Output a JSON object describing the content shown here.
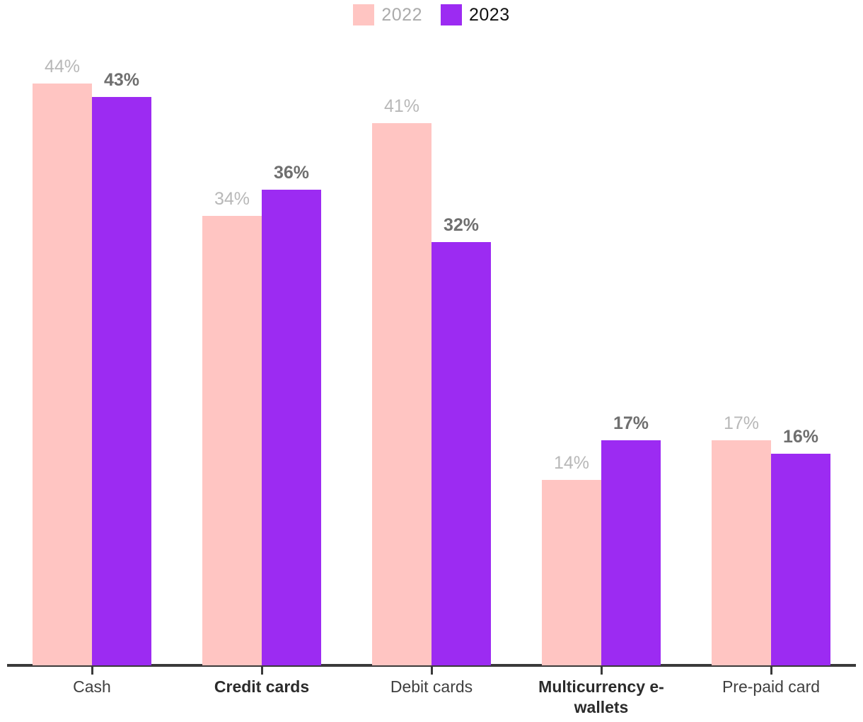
{
  "chart_data": {
    "type": "bar",
    "title": "",
    "xlabel": "",
    "ylabel": "",
    "value_suffix": "%",
    "ylim": [
      0,
      50
    ],
    "grid": false,
    "legend_position": "top-center",
    "categories": [
      "Cash",
      "Credit cards",
      "Debit cards",
      "Multicurrency e-wallets",
      "Pre-paid card"
    ],
    "category_bold": [
      false,
      true,
      false,
      true,
      false
    ],
    "series": [
      {
        "name": "2022",
        "color": "#FFC5C2",
        "values": [
          44,
          34,
          41,
          14,
          17
        ],
        "value_labels": [
          "44%",
          "34%",
          "41%",
          "14%",
          "17%"
        ],
        "value_label_color": "#B8B8B8",
        "value_label_bold": false,
        "legend_text_color": "#ABABAB",
        "legend_text_bold": false
      },
      {
        "name": "2023",
        "color": "#9C2BF2",
        "values": [
          43,
          36,
          32,
          17,
          16
        ],
        "value_labels": [
          "43%",
          "36%",
          "32%",
          "17%",
          "16%"
        ],
        "value_label_color": "#6F6F6F",
        "value_label_bold": true,
        "legend_text_color": "#111111",
        "legend_text_bold": false
      }
    ],
    "axis_color": "#3A3A3A"
  }
}
